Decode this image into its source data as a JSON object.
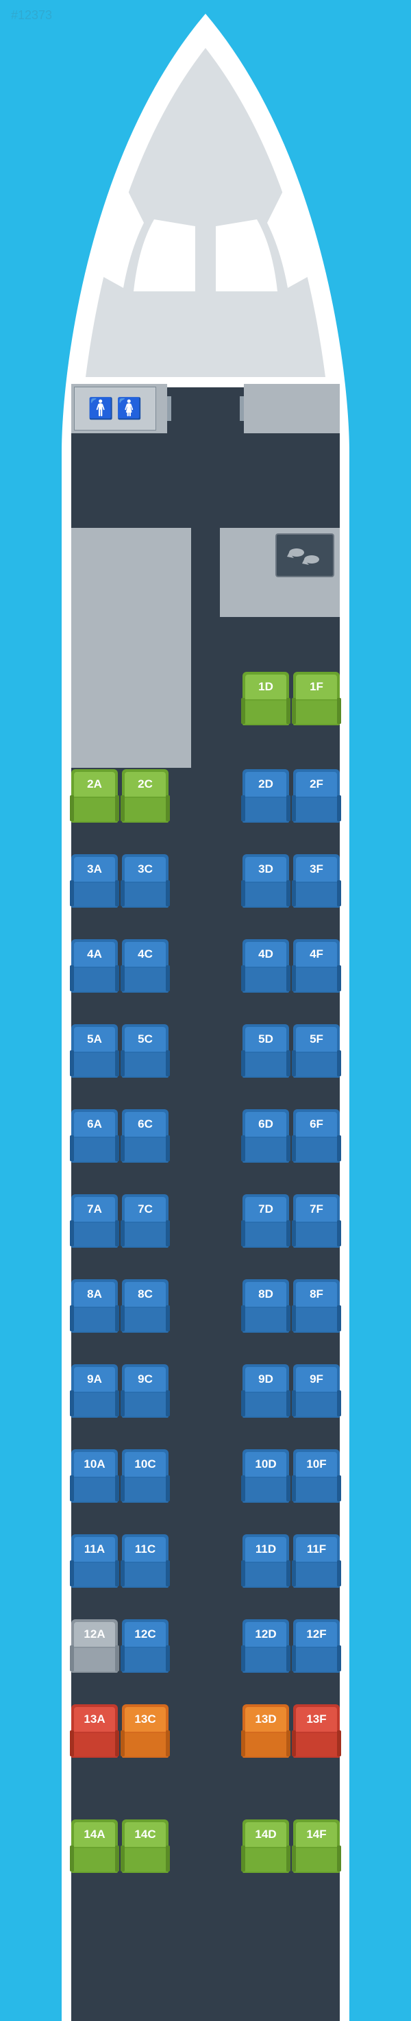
{
  "meta": {
    "watermark": "#12373",
    "background_color": "#29b9e8",
    "fuselage_fill": "#ffffff",
    "nose_overlay_fill": "#d9dee2",
    "window_fill": "#ffffff",
    "cabin_floor_fill": "#323e4b",
    "bulkhead_fill": "#aeb6bd",
    "galley_fill": "#3f4d5a"
  },
  "seat_colors": {
    "blue": {
      "frame": "#2a6fb0",
      "back": "#3a85cc",
      "cushion": "#2f74b5",
      "arm": "#1f5a92"
    },
    "green": {
      "frame": "#6aa32e",
      "back": "#8ac24a",
      "cushion": "#74ad36",
      "arm": "#5a8c26"
    },
    "red": {
      "frame": "#c13a2d",
      "back": "#e05344",
      "cushion": "#c9402f",
      "arm": "#a3301f"
    },
    "orange": {
      "frame": "#d46a1e",
      "back": "#ec8a2f",
      "cushion": "#d9721f",
      "arm": "#b65a14"
    },
    "gray": {
      "frame": "#8a949d",
      "back": "#b0b9c0",
      "cushion": "#98a2ab",
      "arm": "#7a858f"
    }
  },
  "layout": {
    "row_gap": 46,
    "seat_w": 68,
    "seat_h": 78,
    "aisle_w": 108,
    "rows": [
      {
        "left": [],
        "right": [
          {
            "label": "1D",
            "c": "green"
          },
          {
            "label": "1F",
            "c": "green"
          }
        ],
        "gap": 64
      },
      {
        "left": [
          {
            "label": "2A",
            "c": "green"
          },
          {
            "label": "2C",
            "c": "green"
          }
        ],
        "right": [
          {
            "label": "2D",
            "c": "blue"
          },
          {
            "label": "2F",
            "c": "blue"
          }
        ]
      },
      {
        "left": [
          {
            "label": "3A",
            "c": "blue"
          },
          {
            "label": "3C",
            "c": "blue"
          }
        ],
        "right": [
          {
            "label": "3D",
            "c": "blue"
          },
          {
            "label": "3F",
            "c": "blue"
          }
        ]
      },
      {
        "left": [
          {
            "label": "4A",
            "c": "blue"
          },
          {
            "label": "4C",
            "c": "blue"
          }
        ],
        "right": [
          {
            "label": "4D",
            "c": "blue"
          },
          {
            "label": "4F",
            "c": "blue"
          }
        ]
      },
      {
        "left": [
          {
            "label": "5A",
            "c": "blue"
          },
          {
            "label": "5C",
            "c": "blue"
          }
        ],
        "right": [
          {
            "label": "5D",
            "c": "blue"
          },
          {
            "label": "5F",
            "c": "blue"
          }
        ]
      },
      {
        "left": [
          {
            "label": "6A",
            "c": "blue"
          },
          {
            "label": "6C",
            "c": "blue"
          }
        ],
        "right": [
          {
            "label": "6D",
            "c": "blue"
          },
          {
            "label": "6F",
            "c": "blue"
          }
        ]
      },
      {
        "left": [
          {
            "label": "7A",
            "c": "blue"
          },
          {
            "label": "7C",
            "c": "blue"
          }
        ],
        "right": [
          {
            "label": "7D",
            "c": "blue"
          },
          {
            "label": "7F",
            "c": "blue"
          }
        ]
      },
      {
        "left": [
          {
            "label": "8A",
            "c": "blue"
          },
          {
            "label": "8C",
            "c": "blue"
          }
        ],
        "right": [
          {
            "label": "8D",
            "c": "blue"
          },
          {
            "label": "8F",
            "c": "blue"
          }
        ]
      },
      {
        "left": [
          {
            "label": "9A",
            "c": "blue"
          },
          {
            "label": "9C",
            "c": "blue"
          }
        ],
        "right": [
          {
            "label": "9D",
            "c": "blue"
          },
          {
            "label": "9F",
            "c": "blue"
          }
        ]
      },
      {
        "left": [
          {
            "label": "10A",
            "c": "blue"
          },
          {
            "label": "10C",
            "c": "blue"
          }
        ],
        "right": [
          {
            "label": "10D",
            "c": "blue"
          },
          {
            "label": "10F",
            "c": "blue"
          }
        ]
      },
      {
        "left": [
          {
            "label": "11A",
            "c": "blue"
          },
          {
            "label": "11C",
            "c": "blue"
          }
        ],
        "right": [
          {
            "label": "11D",
            "c": "blue"
          },
          {
            "label": "11F",
            "c": "blue"
          }
        ]
      },
      {
        "left": [
          {
            "label": "12A",
            "c": "gray"
          },
          {
            "label": "12C",
            "c": "blue"
          }
        ],
        "right": [
          {
            "label": "12D",
            "c": "blue"
          },
          {
            "label": "12F",
            "c": "blue"
          }
        ]
      },
      {
        "left": [
          {
            "label": "13A",
            "c": "red"
          },
          {
            "label": "13C",
            "c": "orange"
          }
        ],
        "right": [
          {
            "label": "13D",
            "c": "orange"
          },
          {
            "label": "13F",
            "c": "red"
          }
        ],
        "gap": 90
      },
      {
        "left": [
          {
            "label": "14A",
            "c": "green"
          },
          {
            "label": "14C",
            "c": "green"
          }
        ],
        "right": [
          {
            "label": "14D",
            "c": "green"
          },
          {
            "label": "14F",
            "c": "green"
          }
        ]
      }
    ]
  }
}
